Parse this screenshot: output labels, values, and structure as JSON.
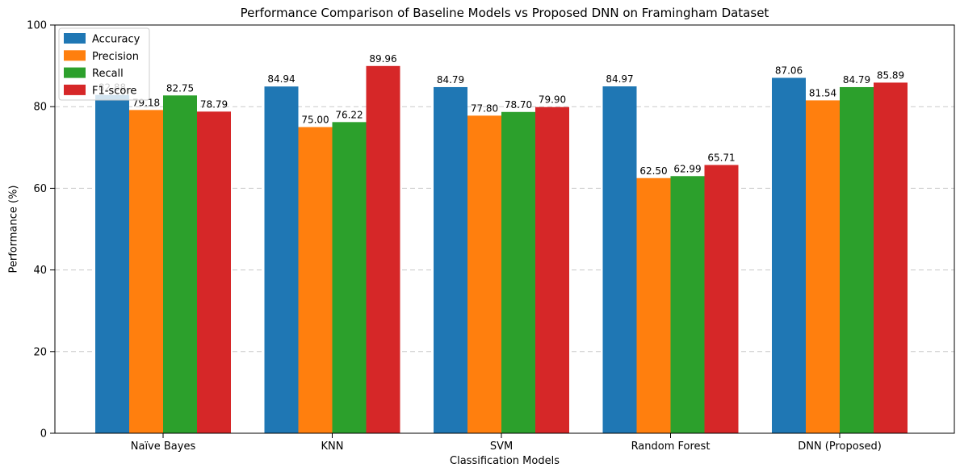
{
  "chart_data": {
    "type": "bar",
    "title": "Performance Comparison of Baseline Models vs Proposed DNN on Framingham Dataset",
    "xlabel": "Classification Models",
    "ylabel": "Performance (%)",
    "categories": [
      "Naïve Bayes",
      "KNN",
      "SVM",
      "Random Forest",
      "DNN (Proposed)"
    ],
    "series": [
      {
        "name": "Accuracy",
        "color": "#1f77b4",
        "values": [
          82.88,
          84.94,
          84.79,
          84.97,
          87.06
        ]
      },
      {
        "name": "Precision",
        "color": "#ff7f0e",
        "values": [
          79.18,
          75.0,
          77.8,
          62.5,
          81.54
        ]
      },
      {
        "name": "Recall",
        "color": "#2ca02c",
        "values": [
          82.75,
          76.22,
          78.7,
          62.99,
          84.79
        ]
      },
      {
        "name": "F1-score",
        "color": "#d62728",
        "values": [
          78.79,
          89.96,
          79.9,
          65.71,
          85.89
        ]
      }
    ],
    "ylim": [
      0,
      100
    ],
    "yticks": [
      0,
      20,
      40,
      60,
      80,
      100
    ],
    "value_label_decimals": 2,
    "grid": "horizontal-dashed",
    "grid_color": "#c9c9c9",
    "legend_position": "top-left",
    "legend_border_color": "#cccccc",
    "axis_color": "#000000"
  }
}
